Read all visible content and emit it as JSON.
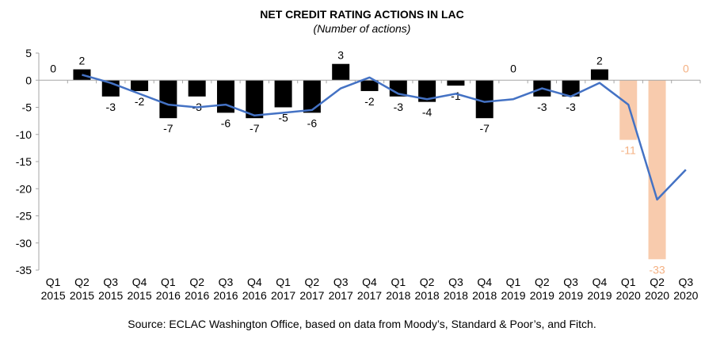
{
  "chart_data": {
    "type": "bar",
    "title": "NET CREDIT RATING ACTIONS IN LAC",
    "subtitle": "(Number of actions)",
    "source": "Source:  ECLAC Washington Office, based on data from Moody’s, Standard & Poor’s, and Fitch.",
    "categories": [
      [
        "Q1",
        "2015"
      ],
      [
        "Q2",
        "2015"
      ],
      [
        "Q3",
        "2015"
      ],
      [
        "Q4",
        "2015"
      ],
      [
        "Q1",
        "2016"
      ],
      [
        "Q2",
        "2016"
      ],
      [
        "Q3",
        "2016"
      ],
      [
        "Q4",
        "2016"
      ],
      [
        "Q1",
        "2017"
      ],
      [
        "Q2",
        "2017"
      ],
      [
        "Q3",
        "2017"
      ],
      [
        "Q4",
        "2017"
      ],
      [
        "Q1",
        "2018"
      ],
      [
        "Q2",
        "2018"
      ],
      [
        "Q3",
        "2018"
      ],
      [
        "Q4",
        "2018"
      ],
      [
        "Q1",
        "2019"
      ],
      [
        "Q2",
        "2019"
      ],
      [
        "Q3",
        "2019"
      ],
      [
        "Q4",
        "2019"
      ],
      [
        "Q1",
        "2020"
      ],
      [
        "Q2",
        "2020"
      ],
      [
        "Q3",
        "2020"
      ]
    ],
    "series": [
      {
        "type": "bar",
        "values": [
          0,
          2,
          -3,
          -2,
          -7,
          -3,
          -6,
          -7,
          -5,
          -6,
          3,
          -2,
          -3,
          -4,
          -1,
          -7,
          0,
          -3,
          -3,
          2,
          -11,
          -33,
          0
        ],
        "highlight_from_index": 20
      },
      {
        "type": "line",
        "values": [
          null,
          1,
          -0.5,
          -2.5,
          -4.5,
          -5,
          -4.5,
          -6.5,
          -6,
          -5.5,
          -1.5,
          0.5,
          -2.5,
          -3.5,
          -2.5,
          -4,
          -3.5,
          -1.5,
          -3,
          -0.5,
          -4.5,
          -22,
          -16.5
        ]
      }
    ],
    "ylim": [
      -35,
      5
    ],
    "yticks": [
      5,
      0,
      -5,
      -10,
      -15,
      -20,
      -25,
      -30,
      -35
    ],
    "grid": false,
    "colors": {
      "bar": "#000000",
      "bar_highlight": "#F8CBAD",
      "label_highlight": "#F4B183",
      "line": "#4472C4",
      "axis": "#A6A6A6"
    }
  }
}
